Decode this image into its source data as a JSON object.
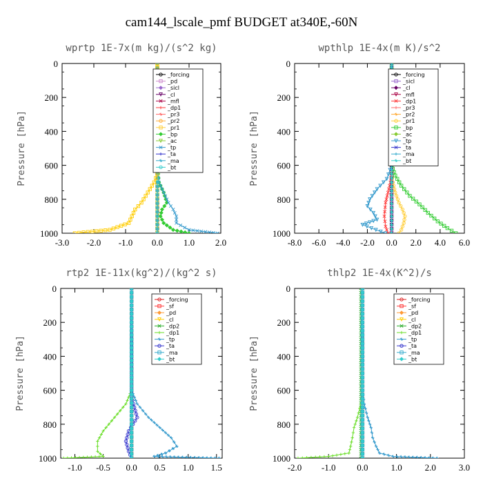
{
  "chart_data": [
    {
      "type": "line",
      "title": "wprtp  1E-7x(m kg)/(s^2 kg)",
      "xlabel": "",
      "ylabel": "Pressure [hPa]",
      "xlim": [
        -3.0,
        2.0
      ],
      "ylim": [
        1000,
        0
      ],
      "xticks": [
        "-3.0",
        "-2.0",
        "-1.0",
        "0.0",
        "1.0",
        "2.0"
      ],
      "yticks": [
        "0",
        "200",
        "400",
        "600",
        "800",
        "1000"
      ],
      "legend_position": "top-right",
      "series": [
        {
          "name": "_forcing",
          "color": "#000000",
          "x": [
            0,
            0,
            0,
            0,
            0,
            0,
            0,
            0,
            0,
            0
          ],
          "y": [
            0,
            100,
            200,
            300,
            400,
            500,
            600,
            700,
            800,
            1000
          ]
        },
        {
          "name": "_pd",
          "color": "#cc88cc",
          "x": [
            0,
            0,
            0,
            0,
            0
          ],
          "y": [
            0,
            250,
            500,
            750,
            1000
          ]
        },
        {
          "name": "_sicl",
          "color": "#9966cc",
          "x": [
            0,
            0,
            0,
            0,
            0
          ],
          "y": [
            0,
            250,
            500,
            750,
            1000
          ]
        },
        {
          "name": "_cl",
          "color": "#660066",
          "x": [
            0,
            0,
            0,
            0,
            0
          ],
          "y": [
            0,
            250,
            500,
            750,
            1000
          ]
        },
        {
          "name": "_mfl",
          "color": "#aa0044",
          "x": [
            0,
            0,
            0,
            0,
            0
          ],
          "y": [
            0,
            250,
            500,
            750,
            1000
          ]
        },
        {
          "name": "_dp1",
          "color": "#ff3333",
          "x": [
            0,
            0,
            0,
            0.02,
            0.03,
            0.02
          ],
          "y": [
            0,
            600,
            700,
            800,
            900,
            1000
          ]
        },
        {
          "name": "_pr3",
          "color": "#ff6666",
          "x": [
            0,
            0,
            0,
            0,
            0
          ],
          "y": [
            0,
            250,
            500,
            750,
            1000
          ]
        },
        {
          "name": "_pr2",
          "color": "#ffaa33",
          "x": [
            0,
            0,
            0,
            0,
            0
          ],
          "y": [
            0,
            250,
            500,
            750,
            1000
          ]
        },
        {
          "name": "_pr1",
          "color": "#ffcc33",
          "x": [
            0,
            0,
            0,
            0,
            0
          ],
          "y": [
            0,
            250,
            500,
            750,
            1000
          ]
        },
        {
          "name": "_bp",
          "color": "#33cc33",
          "x": [
            0,
            0,
            0.05,
            0.2,
            0.3,
            0.15,
            0.1,
            0.2,
            0.5,
            1.0
          ],
          "y": [
            0,
            600,
            700,
            760,
            820,
            860,
            900,
            940,
            980,
            1000
          ]
        },
        {
          "name": "_ac",
          "color": "#88cc33",
          "x": [
            0,
            0,
            0,
            0,
            0
          ],
          "y": [
            0,
            250,
            500,
            750,
            1000
          ]
        },
        {
          "name": "_tp",
          "color": "#3399cc",
          "x": [
            0,
            0,
            0.05,
            0.2,
            0.35,
            0.5,
            0.6,
            0.6,
            1.0,
            1.9
          ],
          "y": [
            0,
            600,
            700,
            760,
            820,
            860,
            900,
            940,
            980,
            1000
          ]
        },
        {
          "name": "_ta",
          "color": "#3333cc",
          "x": [
            0,
            0,
            0,
            0,
            0
          ],
          "y": [
            0,
            250,
            500,
            750,
            1000
          ]
        },
        {
          "name": "_ma",
          "color": "#33aacc",
          "x": [
            0,
            0,
            0,
            0,
            0
          ],
          "y": [
            0,
            250,
            500,
            750,
            1000
          ]
        },
        {
          "name": "_bt",
          "color": "#33cccc",
          "x": [
            0,
            0,
            0,
            0,
            0
          ],
          "y": [
            0,
            250,
            500,
            750,
            1000
          ]
        },
        {
          "name": "",
          "color": "#ffcc00",
          "x": [
            0,
            0,
            -0.1,
            -0.3,
            -0.5,
            -0.7,
            -0.8,
            -0.9,
            -1.5,
            -2.6
          ],
          "y": [
            0,
            650,
            700,
            760,
            820,
            860,
            900,
            940,
            980,
            1000
          ]
        }
      ]
    },
    {
      "type": "line",
      "title": "wpthlp  1E-4x(m K)/s^2",
      "xlabel": "",
      "ylabel": "Pressure [hPa]",
      "xlim": [
        -8.0,
        6.0
      ],
      "ylim": [
        1000,
        0
      ],
      "xticks": [
        "-8.0",
        "-6.0",
        "-4.0",
        "-2.0",
        "0.0",
        "2.0",
        "4.0",
        "6.0"
      ],
      "yticks": [
        "0",
        "200",
        "400",
        "600",
        "800",
        "1000"
      ],
      "legend_position": "top-right",
      "series": [
        {
          "name": "_forcing",
          "color": "#000000",
          "x": [
            0,
            0,
            0,
            0,
            0,
            0
          ],
          "y": [
            0,
            200,
            400,
            600,
            800,
            1000
          ]
        },
        {
          "name": "_sicl",
          "color": "#9966cc",
          "x": [
            0,
            0,
            0,
            0,
            0,
            0,
            0,
            0,
            0,
            0
          ],
          "y": [
            0,
            100,
            200,
            300,
            400,
            500,
            600,
            700,
            800,
            1000
          ]
        },
        {
          "name": "_cl",
          "color": "#660066",
          "x": [
            0,
            0,
            0,
            0,
            0
          ],
          "y": [
            0,
            250,
            500,
            750,
            1000
          ]
        },
        {
          "name": "_mfl",
          "color": "#aa0044",
          "x": [
            0,
            0,
            0,
            0,
            0
          ],
          "y": [
            0,
            250,
            500,
            750,
            1000
          ]
        },
        {
          "name": "_dp1",
          "color": "#ff3333",
          "x": [
            0,
            0,
            -0.1,
            -0.3,
            -0.5,
            -0.6,
            -0.5,
            -0.3
          ],
          "y": [
            0,
            650,
            700,
            760,
            820,
            900,
            960,
            1000
          ]
        },
        {
          "name": "_pr3",
          "color": "#ff6666",
          "x": [
            0,
            0,
            0,
            0,
            0
          ],
          "y": [
            0,
            250,
            500,
            750,
            1000
          ]
        },
        {
          "name": "_pr2",
          "color": "#ffaa33",
          "x": [
            0,
            0,
            0,
            0,
            0
          ],
          "y": [
            0,
            250,
            500,
            750,
            1000
          ]
        },
        {
          "name": "_pr1",
          "color": "#ffcc33",
          "x": [
            0,
            0,
            0.1,
            0.3,
            0.6,
            0.9,
            1.1,
            1.0,
            0.8,
            0.6
          ],
          "y": [
            0,
            650,
            700,
            760,
            820,
            860,
            900,
            940,
            980,
            1000
          ]
        },
        {
          "name": "_bp",
          "color": "#33cc33",
          "x": [
            0,
            0,
            0.3,
            0.8,
            1.5,
            2.3,
            3.0,
            3.8,
            4.6,
            5.3
          ],
          "y": [
            0,
            600,
            660,
            720,
            780,
            830,
            880,
            930,
            970,
            1000
          ]
        },
        {
          "name": "_ac",
          "color": "#88cc33",
          "x": [
            0,
            0,
            0,
            0,
            0
          ],
          "y": [
            0,
            250,
            500,
            750,
            1000
          ]
        },
        {
          "name": "_tp",
          "color": "#3399cc",
          "x": [
            0,
            0,
            -0.4,
            -1.2,
            -1.8,
            -2.0,
            -1.5,
            -1.2,
            -2.4,
            -1.3,
            -0.5
          ],
          "y": [
            0,
            600,
            680,
            740,
            800,
            840,
            880,
            920,
            950,
            980,
            1000
          ]
        },
        {
          "name": "_ta",
          "color": "#3333cc",
          "x": [
            0,
            0,
            0,
            0,
            0
          ],
          "y": [
            0,
            250,
            500,
            750,
            1000
          ]
        },
        {
          "name": "_ma",
          "color": "#33aacc",
          "x": [
            0,
            0,
            0,
            0,
            0
          ],
          "y": [
            0,
            250,
            500,
            750,
            1000
          ]
        },
        {
          "name": "_bt",
          "color": "#33cccc",
          "x": [
            0,
            0,
            0,
            0,
            0
          ],
          "y": [
            0,
            250,
            500,
            750,
            1000
          ]
        }
      ]
    },
    {
      "type": "line",
      "title": "rtp2  1E-11x(kg^2)/(kg^2 s)",
      "xlabel": "",
      "ylabel": "Pressure [hPa]",
      "xlim": [
        -1.25,
        1.6
      ],
      "ylim": [
        1000,
        0
      ],
      "xticks": [
        "-1.0",
        "-0.5",
        "0.0",
        "0.5",
        "1.0",
        "1.5"
      ],
      "yticks": [
        "0",
        "200",
        "400",
        "600",
        "800",
        "1000"
      ],
      "legend_position": "top-right",
      "series": [
        {
          "name": "_forcing",
          "color": "#dd2222",
          "x": [
            0,
            0,
            0,
            0,
            0,
            0,
            0,
            0,
            0,
            0,
            0
          ],
          "y": [
            0,
            100,
            200,
            300,
            400,
            500,
            600,
            700,
            800,
            900,
            1000
          ]
        },
        {
          "name": "_sf",
          "color": "#ff3333",
          "x": [
            0,
            0,
            0,
            0,
            0
          ],
          "y": [
            0,
            250,
            500,
            750,
            1000
          ]
        },
        {
          "name": "_pd",
          "color": "#ff9933",
          "x": [
            0,
            0,
            0,
            0,
            0
          ],
          "y": [
            0,
            250,
            500,
            750,
            1000
          ]
        },
        {
          "name": "_cl",
          "color": "#ffcc00",
          "x": [
            0,
            0,
            0,
            0,
            0
          ],
          "y": [
            0,
            250,
            500,
            750,
            1000
          ]
        },
        {
          "name": "_dp2",
          "color": "#22aa22",
          "x": [
            0,
            0,
            0,
            0,
            0
          ],
          "y": [
            0,
            250,
            500,
            750,
            1000
          ]
        },
        {
          "name": "_dp1",
          "color": "#66dd22",
          "x": [
            0,
            0,
            -0.1,
            -0.3,
            -0.5,
            -0.6,
            -0.6,
            -0.5,
            -1.2
          ],
          "y": [
            0,
            600,
            680,
            760,
            840,
            900,
            960,
            990,
            1000
          ]
        },
        {
          "name": "_tp",
          "color": "#3399cc",
          "x": [
            0,
            0,
            0.1,
            0.3,
            0.5,
            0.7,
            0.8,
            0.6,
            0.4,
            1.55
          ],
          "y": [
            0,
            600,
            680,
            760,
            820,
            880,
            930,
            970,
            990,
            1000
          ]
        },
        {
          "name": "_ta",
          "color": "#3333cc",
          "x": [
            0,
            0,
            0.05,
            0.1,
            -0.05,
            -0.1,
            -0.05,
            0
          ],
          "y": [
            0,
            640,
            700,
            760,
            840,
            900,
            960,
            1000
          ]
        },
        {
          "name": "_ma",
          "color": "#33aacc",
          "x": [
            0,
            0,
            0,
            0,
            0
          ],
          "y": [
            0,
            250,
            500,
            750,
            1000
          ]
        },
        {
          "name": "_bt",
          "color": "#33cccc",
          "x": [
            0,
            0,
            0,
            0,
            0
          ],
          "y": [
            0,
            250,
            500,
            750,
            1000
          ]
        }
      ]
    },
    {
      "type": "line",
      "title": "thlp2  1E-4x(K^2)/s",
      "xlabel": "",
      "ylabel": "Pressure [hPa]",
      "xlim": [
        -2.0,
        3.0
      ],
      "ylim": [
        1000,
        0
      ],
      "xticks": [
        "-2.0",
        "-1.0",
        "0.0",
        "1.0",
        "2.0",
        "3.0"
      ],
      "yticks": [
        "0",
        "200",
        "400",
        "600",
        "800",
        "1000"
      ],
      "legend_position": "top-right",
      "series": [
        {
          "name": "_forcing",
          "color": "#dd2222",
          "x": [
            0,
            0,
            0,
            0,
            0,
            0,
            0,
            0,
            0,
            0,
            0
          ],
          "y": [
            0,
            100,
            200,
            300,
            400,
            500,
            600,
            700,
            800,
            900,
            1000
          ]
        },
        {
          "name": "_sf",
          "color": "#ff3333",
          "x": [
            0,
            0,
            0,
            0,
            0
          ],
          "y": [
            0,
            250,
            500,
            750,
            1000
          ]
        },
        {
          "name": "_pd",
          "color": "#ff9933",
          "x": [
            0,
            0,
            0,
            0,
            0
          ],
          "y": [
            0,
            250,
            500,
            750,
            1000
          ]
        },
        {
          "name": "_cl",
          "color": "#ffcc00",
          "x": [
            0,
            0,
            0,
            0,
            0
          ],
          "y": [
            0,
            250,
            500,
            750,
            1000
          ]
        },
        {
          "name": "_dp2",
          "color": "#22aa22",
          "x": [
            -0.05,
            -0.05,
            -0.05,
            -0.05,
            -0.05
          ],
          "y": [
            0,
            250,
            500,
            750,
            1000
          ]
        },
        {
          "name": "_dp1",
          "color": "#66dd22",
          "x": [
            0,
            0,
            -0.05,
            -0.15,
            -0.25,
            -0.3,
            -0.35,
            -0.4,
            -1.0,
            -1.9
          ],
          "y": [
            0,
            600,
            680,
            760,
            820,
            880,
            930,
            970,
            990,
            1000
          ]
        },
        {
          "name": "_tp",
          "color": "#3399cc",
          "x": [
            0,
            0,
            0.05,
            0.15,
            0.25,
            0.3,
            0.4,
            0.5,
            0.9,
            2.2
          ],
          "y": [
            0,
            600,
            680,
            760,
            820,
            880,
            930,
            970,
            990,
            1000
          ]
        },
        {
          "name": "_ta",
          "color": "#3333cc",
          "x": [
            0,
            0,
            0,
            0,
            0
          ],
          "y": [
            0,
            250,
            500,
            750,
            1000
          ]
        },
        {
          "name": "_ma",
          "color": "#33aacc",
          "x": [
            0,
            0,
            0,
            0,
            0
          ],
          "y": [
            0,
            250,
            500,
            750,
            1000
          ]
        },
        {
          "name": "_bt",
          "color": "#33cccc",
          "x": [
            0,
            0,
            0,
            0,
            0
          ],
          "y": [
            0,
            250,
            500,
            750,
            1000
          ]
        }
      ]
    }
  ],
  "page_title": "cam144_lscale_pmf  BUDGET at340E,-60N"
}
